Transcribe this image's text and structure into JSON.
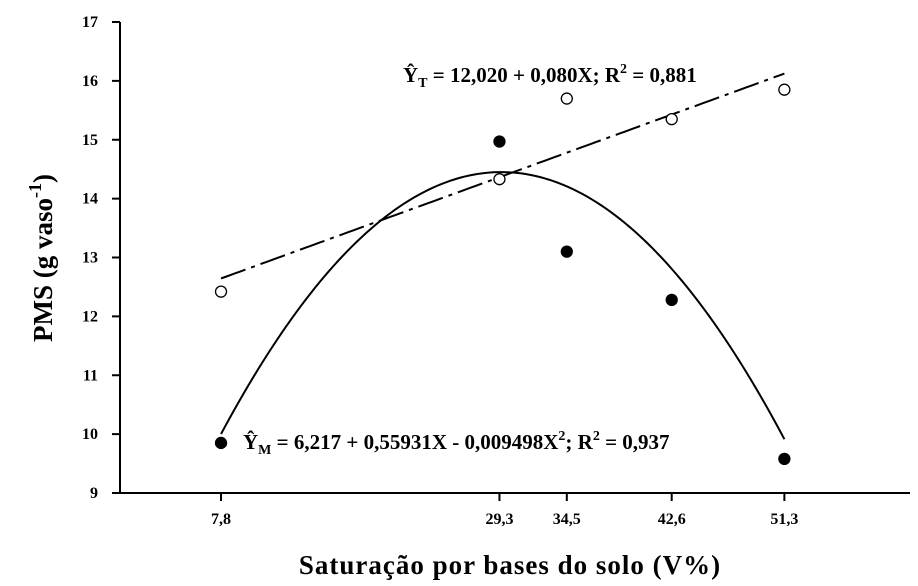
{
  "chart_data": {
    "type": "scatter",
    "xlabel": "Saturação por bases do solo (V%)",
    "ylabel": {
      "main": "PMS (g vaso",
      "sup": "-1",
      "close": ")"
    },
    "x_ticks": [
      "7,8",
      "29,3",
      "34,5",
      "42,6",
      "51,3"
    ],
    "x_tick_values": [
      7.8,
      29.3,
      34.5,
      42.6,
      51.3
    ],
    "y_ticks": [
      "9",
      "10",
      "11",
      "12",
      "13",
      "14",
      "15",
      "16",
      "17"
    ],
    "y_tick_values": [
      9,
      10,
      11,
      12,
      13,
      14,
      15,
      16,
      17
    ],
    "xlim": [
      0,
      61
    ],
    "ylim": [
      9,
      17
    ],
    "grid": false,
    "series": [
      {
        "key": "T",
        "marker": "open-circle",
        "line_style": "dash-dot",
        "x": [
          7.8,
          29.3,
          34.5,
          42.6,
          51.3
        ],
        "y": [
          12.42,
          14.33,
          15.7,
          15.35,
          15.85
        ],
        "fit": {
          "type": "linear",
          "coef": [
            12.02,
            0.08
          ],
          "x_range": [
            7.8,
            51.3
          ]
        },
        "equation": {
          "y": "Ŷ",
          "sub": "T",
          "mid": " = 12,020 + 0,080X; R",
          "sup": "2",
          "end": " = 0,881"
        }
      },
      {
        "key": "M",
        "marker": "filled-circle",
        "line_style": "solid",
        "x": [
          7.8,
          29.3,
          34.5,
          42.6,
          51.3
        ],
        "y": [
          9.85,
          14.97,
          13.1,
          12.28,
          9.58
        ],
        "fit": {
          "type": "quadratic",
          "coef": [
            6.217,
            0.55931,
            -0.009498
          ],
          "x_range": [
            7.8,
            51.3
          ]
        },
        "equation": {
          "y": "Ŷ",
          "sub": "M",
          "mid": " = 6,217 + 0,55931X - 0,009498X",
          "sup": "2",
          "mid2": "; R",
          "sup2": "2",
          "end": " = 0,937"
        }
      }
    ]
  }
}
